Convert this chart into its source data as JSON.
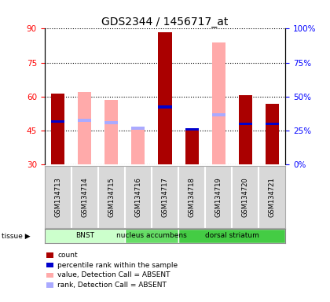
{
  "title": "GDS2344 / 1456717_at",
  "samples": [
    "GSM134713",
    "GSM134714",
    "GSM134715",
    "GSM134716",
    "GSM134717",
    "GSM134718",
    "GSM134719",
    "GSM134720",
    "GSM134721"
  ],
  "red_bars": [
    61.5,
    null,
    null,
    null,
    88.5,
    45.5,
    null,
    60.5,
    57.0
  ],
  "pink_bars": [
    null,
    62.0,
    58.5,
    46.5,
    null,
    null,
    84.0,
    null,
    null
  ],
  "blue_markers": [
    49.0,
    null,
    null,
    null,
    55.5,
    45.5,
    null,
    48.0,
    48.0
  ],
  "lavender_markers": [
    null,
    49.5,
    48.5,
    46.0,
    null,
    null,
    52.0,
    null,
    null
  ],
  "ylim_left": [
    30,
    90
  ],
  "ylim_right": [
    0,
    100
  ],
  "yticks_left": [
    30,
    45,
    60,
    75,
    90
  ],
  "yticks_right": [
    0,
    25,
    50,
    75,
    100
  ],
  "ylabel_right_labels": [
    "0%",
    "25%",
    "50%",
    "75%",
    "100%"
  ],
  "tissues": [
    {
      "label": "BNST",
      "start": 0,
      "end": 3,
      "color": "#ccffcc"
    },
    {
      "label": "nucleus accumbens",
      "start": 3,
      "end": 5,
      "color": "#66dd66"
    },
    {
      "label": "dorsal striatum",
      "start": 5,
      "end": 9,
      "color": "#44cc44"
    }
  ],
  "bar_width": 0.5,
  "red_color": "#aa0000",
  "pink_color": "#ffaaaa",
  "blue_color": "#0000cc",
  "lavender_color": "#aaaaff",
  "legend_items": [
    {
      "color": "#aa0000",
      "label": "count"
    },
    {
      "color": "#0000cc",
      "label": "percentile rank within the sample"
    },
    {
      "color": "#ffaaaa",
      "label": "value, Detection Call = ABSENT"
    },
    {
      "color": "#aaaaff",
      "label": "rank, Detection Call = ABSENT"
    }
  ]
}
